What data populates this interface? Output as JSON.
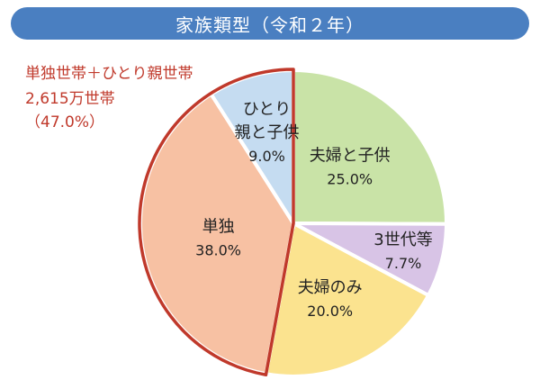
{
  "title": "家族類型（令和２年）",
  "annotation": {
    "line1": "単独世帯＋ひとり親世帯",
    "line2": "2,615万世帯",
    "line3": "（47.0%）"
  },
  "colors": {
    "title_bg": "#4a7fc1",
    "annotation": "#c0392b",
    "highlight_border": "#c0392b"
  },
  "chart_data": {
    "type": "pie",
    "title": "家族類型（令和２年）",
    "unit": "%",
    "start": "12 o'clock, clockwise",
    "slices": [
      {
        "label": "夫婦と子供",
        "label_lines": [
          "夫婦と子供"
        ],
        "value": 25.0,
        "value_text": "25.0%",
        "color": "#c9e3a7",
        "highlighted": false
      },
      {
        "label": "3世代等",
        "label_lines": [
          "3世代等"
        ],
        "value": 7.7,
        "value_text": "7.7%",
        "color": "#d8c4e6",
        "highlighted": false
      },
      {
        "label": "夫婦のみ",
        "label_lines": [
          "夫婦のみ"
        ],
        "value": 20.0,
        "value_text": "20.0%",
        "color": "#fbe38f",
        "highlighted": false
      },
      {
        "label": "単独",
        "label_lines": [
          "単独"
        ],
        "value": 38.0,
        "value_text": "38.0%",
        "color": "#f7c1a3",
        "highlighted": true
      },
      {
        "label": "ひとり親と子供",
        "label_lines": [
          "ひとり",
          "親と子供"
        ],
        "value": 9.0,
        "value_text": "9.0%",
        "color": "#c5dcf1",
        "highlighted": true
      }
    ]
  }
}
